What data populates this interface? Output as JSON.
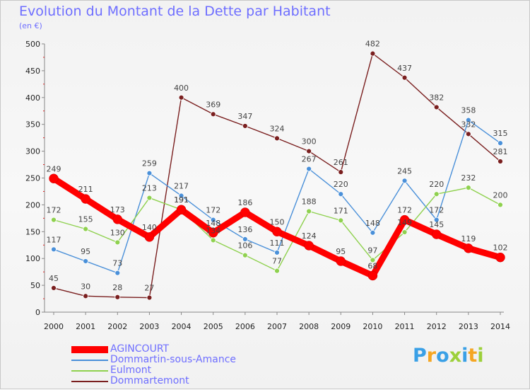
{
  "header": {
    "title": "Evolution du Montant de la Dette par Habitant",
    "subtitle": "(en €)"
  },
  "logo": {
    "text": "Proxiti",
    "colors": [
      "#3aa0e6",
      "#f5a623",
      "#3aa0e6",
      "#9cd03a",
      "#3aa0e6",
      "#f5a623",
      "#9cd03a"
    ]
  },
  "chart_data": {
    "type": "line",
    "title": "Evolution du Montant de la Dette par Habitant",
    "subtitle": "(en €)",
    "x": [
      "2000",
      "2001",
      "2002",
      "2003",
      "2004",
      "2005",
      "2006",
      "2007",
      "2008",
      "2009",
      "2010",
      "2011",
      "2012",
      "2013",
      "2014"
    ],
    "ylim": [
      0,
      500
    ],
    "yticks": [
      0,
      50,
      100,
      150,
      200,
      250,
      300,
      350,
      400,
      450,
      500
    ],
    "grid": false,
    "legend_position": "bottom-left",
    "series": [
      {
        "name": "AGINCOURT",
        "color": "#ff0000",
        "values": [
          249,
          211,
          173,
          140,
          191,
          148,
          186,
          150,
          124,
          95,
          68,
          172,
          145,
          119,
          102
        ]
      },
      {
        "name": "Dommartin-sous-Amance",
        "color": "#4a90d9",
        "values": [
          117,
          95,
          73,
          259,
          217,
          172,
          136,
          111,
          267,
          220,
          148,
          245,
          172,
          358,
          315
        ]
      },
      {
        "name": "Eulmont",
        "color": "#8fd14f",
        "values": [
          172,
          155,
          130,
          213,
          191,
          134,
          106,
          77,
          188,
          171,
          97,
          149,
          220,
          232,
          200
        ]
      },
      {
        "name": "Dommartemont",
        "color": "#7a1f1f",
        "values": [
          45,
          30,
          28,
          27,
          400,
          369,
          347,
          324,
          300,
          261,
          482,
          437,
          382,
          332,
          281
        ]
      }
    ]
  }
}
